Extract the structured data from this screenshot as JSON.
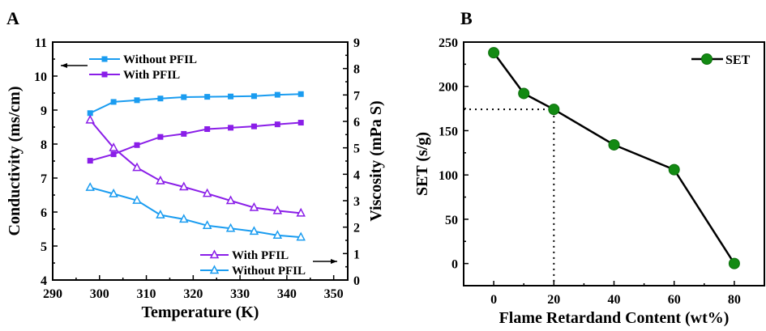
{
  "colors": {
    "blue": "#1a9cf0",
    "purple": "#8a1ee8",
    "green": "#1a8a1a",
    "black": "#000000"
  },
  "chart_data": [
    {
      "panel": "A",
      "type": "line",
      "xlabel": "Temperature (K)",
      "ylabel": "Conductivity (ms/cm)",
      "y2label": "Viscosity (mPa S)",
      "xlim": [
        290,
        353
      ],
      "ylim": [
        4,
        11
      ],
      "y2lim": [
        0,
        9
      ],
      "xticks": [
        290,
        300,
        310,
        320,
        330,
        340,
        350
      ],
      "yticks": [
        4,
        5,
        6,
        7,
        8,
        9,
        10,
        11
      ],
      "y2ticks": [
        0,
        1,
        2,
        3,
        4,
        5,
        6,
        7,
        8,
        9
      ],
      "x": [
        298,
        303,
        308,
        313,
        318,
        323,
        328,
        333,
        338,
        343
      ],
      "series": [
        {
          "name": "Without PFIL",
          "axis": "left",
          "marker": "square",
          "color": "blue",
          "values": [
            8.91,
            9.24,
            9.29,
            9.34,
            9.38,
            9.39,
            9.4,
            9.41,
            9.45,
            9.47
          ]
        },
        {
          "name": "With PFIL",
          "axis": "left",
          "marker": "square",
          "color": "purple",
          "values": [
            7.51,
            7.7,
            7.97,
            8.21,
            8.3,
            8.44,
            8.48,
            8.52,
            8.58,
            8.63
          ]
        },
        {
          "name": "With PFIL",
          "axis": "right",
          "marker": "triangle",
          "color": "purple",
          "values": [
            6.05,
            5.0,
            4.25,
            3.75,
            3.52,
            3.27,
            3.0,
            2.74,
            2.62,
            2.53
          ]
        },
        {
          "name": "Without PFIL",
          "axis": "right",
          "marker": "triangle",
          "color": "blue",
          "values": [
            3.5,
            3.26,
            3.01,
            2.46,
            2.3,
            2.06,
            1.95,
            1.84,
            1.69,
            1.62
          ]
        }
      ],
      "legend": "top-left (left axis) / bottom-right (right axis)"
    },
    {
      "panel": "B",
      "type": "line",
      "xlabel": "Flame Retardand Content (wt%)",
      "ylabel": "SET (s/g)",
      "xlim": [
        -10,
        90
      ],
      "ylim": [
        -25,
        250
      ],
      "xticks": [
        0,
        20,
        40,
        60,
        80
      ],
      "yticks": [
        0,
        50,
        100,
        150,
        200,
        250
      ],
      "x": [
        0,
        10,
        20,
        40,
        60,
        80
      ],
      "series": [
        {
          "name": "SET",
          "marker": "circle",
          "color": "green",
          "values": [
            238,
            192,
            174,
            134,
            106,
            0
          ]
        }
      ],
      "reference_point": {
        "x": 20,
        "y": 174
      },
      "legend": "top-right"
    }
  ]
}
